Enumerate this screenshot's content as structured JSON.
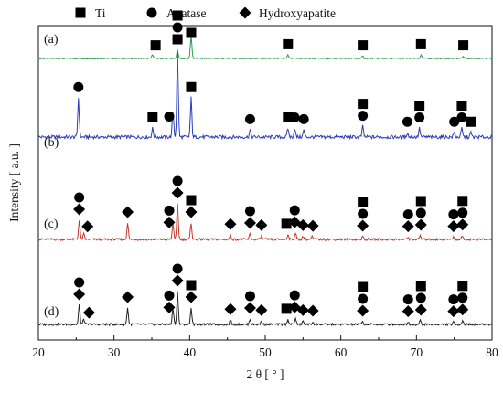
{
  "chart_data": {
    "type": "line",
    "xlabel": "2 θ [ ° ]",
    "ylabel": "Intensity [ a.u. ]",
    "xlim": [
      20,
      80
    ],
    "xticks": [
      20,
      30,
      40,
      50,
      60,
      70,
      80
    ],
    "legend": [
      {
        "name": "Ti",
        "marker": "square"
      },
      {
        "name": "Anatase",
        "marker": "circle"
      },
      {
        "name": "Hydroxyapatite",
        "marker": "diamond"
      }
    ],
    "series": [
      {
        "name": "(a)",
        "color": "#2e9b4e",
        "peaks": [
          [
            35.1,
            0.15
          ],
          [
            38.4,
            0.3
          ],
          [
            40.2,
            0.85
          ],
          [
            53.0,
            0.12
          ],
          [
            62.9,
            0.08
          ],
          [
            70.6,
            0.12
          ],
          [
            76.2,
            0.08
          ]
        ],
        "markers": [
          {
            "x": 35.5,
            "stack": [
              "square"
            ]
          },
          {
            "x": 38.4,
            "stack": [
              "square"
            ]
          },
          {
            "x": 40.2,
            "stack": [
              "square"
            ]
          },
          {
            "x": 53.0,
            "stack": [
              "square"
            ]
          },
          {
            "x": 62.9,
            "stack": [
              "square"
            ]
          },
          {
            "x": 70.6,
            "stack": [
              "square"
            ]
          },
          {
            "x": 76.2,
            "stack": [
              "square"
            ]
          }
        ]
      },
      {
        "name": "(b)",
        "color": "#2b3cba",
        "peaks": [
          [
            25.3,
            0.45
          ],
          [
            35.1,
            0.1
          ],
          [
            37.8,
            0.3
          ],
          [
            38.4,
            1.0
          ],
          [
            40.2,
            0.45
          ],
          [
            48.0,
            0.08
          ],
          [
            53.0,
            0.1
          ],
          [
            53.9,
            0.1
          ],
          [
            55.1,
            0.08
          ],
          [
            62.9,
            0.12
          ],
          [
            68.8,
            0.05
          ],
          [
            70.4,
            0.1
          ],
          [
            75.0,
            0.05
          ],
          [
            76.0,
            0.1
          ],
          [
            77.2,
            0.05
          ]
        ],
        "markers": [
          {
            "x": 25.3,
            "stack": [
              "circle"
            ]
          },
          {
            "x": 35.1,
            "stack": [
              "square"
            ]
          },
          {
            "x": 37.3,
            "stack": [
              "circle"
            ]
          },
          {
            "x": 38.4,
            "stack": [
              "circle",
              "circle",
              "square"
            ]
          },
          {
            "x": 40.2,
            "stack": [
              "square"
            ]
          },
          {
            "x": 48.0,
            "stack": [
              "circle"
            ]
          },
          {
            "x": 53.0,
            "stack": [
              "square"
            ]
          },
          {
            "x": 53.9,
            "stack": [
              "circle"
            ]
          },
          {
            "x": 55.1,
            "stack": [
              "circle"
            ]
          },
          {
            "x": 62.9,
            "stack": [
              "circle",
              "square"
            ]
          },
          {
            "x": 68.8,
            "stack": [
              "circle"
            ]
          },
          {
            "x": 70.4,
            "stack": [
              "circle",
              "square"
            ]
          },
          {
            "x": 75.0,
            "stack": [
              "circle"
            ]
          },
          {
            "x": 76.0,
            "stack": [
              "circle",
              "square"
            ]
          },
          {
            "x": 77.2,
            "stack": [
              "square"
            ]
          }
        ]
      },
      {
        "name": "(c)",
        "color": "#c0392b",
        "peaks": [
          [
            25.4,
            0.35
          ],
          [
            26.0,
            0.1
          ],
          [
            31.8,
            0.3
          ],
          [
            37.8,
            0.3
          ],
          [
            38.4,
            0.65
          ],
          [
            40.2,
            0.3
          ],
          [
            45.4,
            0.08
          ],
          [
            48.0,
            0.1
          ],
          [
            49.5,
            0.06
          ],
          [
            53.0,
            0.1
          ],
          [
            54.0,
            0.12
          ],
          [
            55.0,
            0.06
          ],
          [
            56.2,
            0.05
          ],
          [
            62.9,
            0.05
          ],
          [
            68.9,
            0.04
          ],
          [
            70.5,
            0.07
          ],
          [
            74.9,
            0.04
          ],
          [
            76.1,
            0.07
          ]
        ],
        "markers": [
          {
            "x": 25.4,
            "stack": [
              "diamond",
              "circle"
            ]
          },
          {
            "x": 26.5,
            "stack": [
              "diamond"
            ]
          },
          {
            "x": 31.8,
            "stack": [
              "diamond"
            ]
          },
          {
            "x": 37.3,
            "stack": [
              "diamond",
              "circle"
            ]
          },
          {
            "x": 38.4,
            "stack": [
              "diamond",
              "circle"
            ]
          },
          {
            "x": 40.2,
            "stack": [
              "diamond",
              "square"
            ]
          },
          {
            "x": 45.4,
            "stack": [
              "diamond"
            ]
          },
          {
            "x": 48.0,
            "stack": [
              "diamond",
              "circle"
            ]
          },
          {
            "x": 49.5,
            "stack": [
              "diamond"
            ]
          },
          {
            "x": 52.8,
            "stack": [
              "square"
            ]
          },
          {
            "x": 53.9,
            "stack": [
              "diamond",
              "circle"
            ]
          },
          {
            "x": 55.0,
            "stack": [
              "diamond"
            ]
          },
          {
            "x": 56.3,
            "stack": [
              "diamond"
            ]
          },
          {
            "x": 62.9,
            "stack": [
              "diamond",
              "circle",
              "square"
            ]
          },
          {
            "x": 68.9,
            "stack": [
              "diamond",
              "circle"
            ]
          },
          {
            "x": 70.6,
            "stack": [
              "diamond",
              "circle",
              "square"
            ]
          },
          {
            "x": 74.9,
            "stack": [
              "diamond",
              "circle"
            ]
          },
          {
            "x": 76.1,
            "stack": [
              "diamond",
              "circle",
              "square"
            ]
          }
        ]
      },
      {
        "name": "(d)",
        "color": "#222222",
        "peaks": [
          [
            25.4,
            0.35
          ],
          [
            26.0,
            0.1
          ],
          [
            31.8,
            0.3
          ],
          [
            37.8,
            0.3
          ],
          [
            38.4,
            0.6
          ],
          [
            40.2,
            0.3
          ],
          [
            45.4,
            0.08
          ],
          [
            48.0,
            0.1
          ],
          [
            49.5,
            0.06
          ],
          [
            53.0,
            0.1
          ],
          [
            54.0,
            0.12
          ],
          [
            55.0,
            0.06
          ],
          [
            56.3,
            0.05
          ],
          [
            62.9,
            0.05
          ],
          [
            68.9,
            0.04
          ],
          [
            70.5,
            0.07
          ],
          [
            74.9,
            0.04
          ],
          [
            76.1,
            0.07
          ]
        ],
        "markers": [
          {
            "x": 25.4,
            "stack": [
              "diamond",
              "circle"
            ]
          },
          {
            "x": 26.7,
            "stack": [
              "diamond"
            ]
          },
          {
            "x": 31.8,
            "stack": [
              "diamond"
            ]
          },
          {
            "x": 37.3,
            "stack": [
              "diamond",
              "circle"
            ]
          },
          {
            "x": 38.4,
            "stack": [
              "diamond",
              "circle"
            ]
          },
          {
            "x": 40.2,
            "stack": [
              "diamond",
              "square"
            ]
          },
          {
            "x": 45.4,
            "stack": [
              "diamond"
            ]
          },
          {
            "x": 48.0,
            "stack": [
              "diamond",
              "circle"
            ]
          },
          {
            "x": 49.5,
            "stack": [
              "diamond"
            ]
          },
          {
            "x": 52.8,
            "stack": [
              "square"
            ]
          },
          {
            "x": 53.9,
            "stack": [
              "diamond",
              "circle"
            ]
          },
          {
            "x": 55.0,
            "stack": [
              "diamond"
            ]
          },
          {
            "x": 56.3,
            "stack": [
              "diamond"
            ]
          },
          {
            "x": 62.9,
            "stack": [
              "diamond",
              "circle",
              "square"
            ]
          },
          {
            "x": 68.9,
            "stack": [
              "diamond",
              "circle"
            ]
          },
          {
            "x": 70.6,
            "stack": [
              "diamond",
              "circle",
              "square"
            ]
          },
          {
            "x": 74.9,
            "stack": [
              "diamond",
              "circle"
            ]
          },
          {
            "x": 76.1,
            "stack": [
              "diamond",
              "circle",
              "square"
            ]
          }
        ]
      }
    ]
  }
}
